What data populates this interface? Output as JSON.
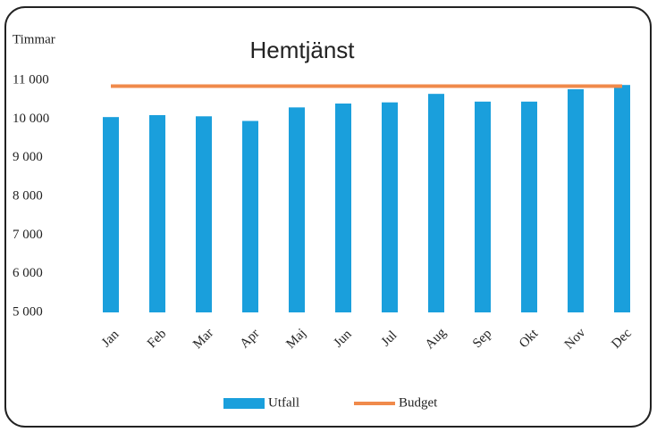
{
  "chart_data": {
    "type": "bar_line",
    "title": "Hemtjänst",
    "y_label": "Timmar",
    "categories": [
      "Jan",
      "Feb",
      "Mar",
      "Apr",
      "Maj",
      "Jun",
      "Jul",
      "Aug",
      "Sep",
      "Okt",
      "Nov",
      "Dec"
    ],
    "series": [
      {
        "name": "Utfall",
        "type": "bar",
        "color": "#1a9fdc",
        "values": [
          10050,
          10100,
          10070,
          9950,
          10300,
          10400,
          10430,
          10650,
          10450,
          10450,
          10770,
          10880
        ]
      },
      {
        "name": "Budget",
        "type": "line",
        "color": "#f08a4b",
        "values": [
          10850,
          10850,
          10850,
          10850,
          10850,
          10850,
          10850,
          10850,
          10850,
          10850,
          10850,
          10850
        ]
      }
    ],
    "ylim": [
      5000,
      11000
    ],
    "yticks": [
      {
        "value": 5000,
        "label": "5 000"
      },
      {
        "value": 6000,
        "label": "6 000"
      },
      {
        "value": 7000,
        "label": "7 000"
      },
      {
        "value": 8000,
        "label": "8 000"
      },
      {
        "value": 9000,
        "label": "9 000"
      },
      {
        "value": 10000,
        "label": "10 000"
      },
      {
        "value": 11000,
        "label": "11 000"
      }
    ],
    "legend": "bottom"
  }
}
